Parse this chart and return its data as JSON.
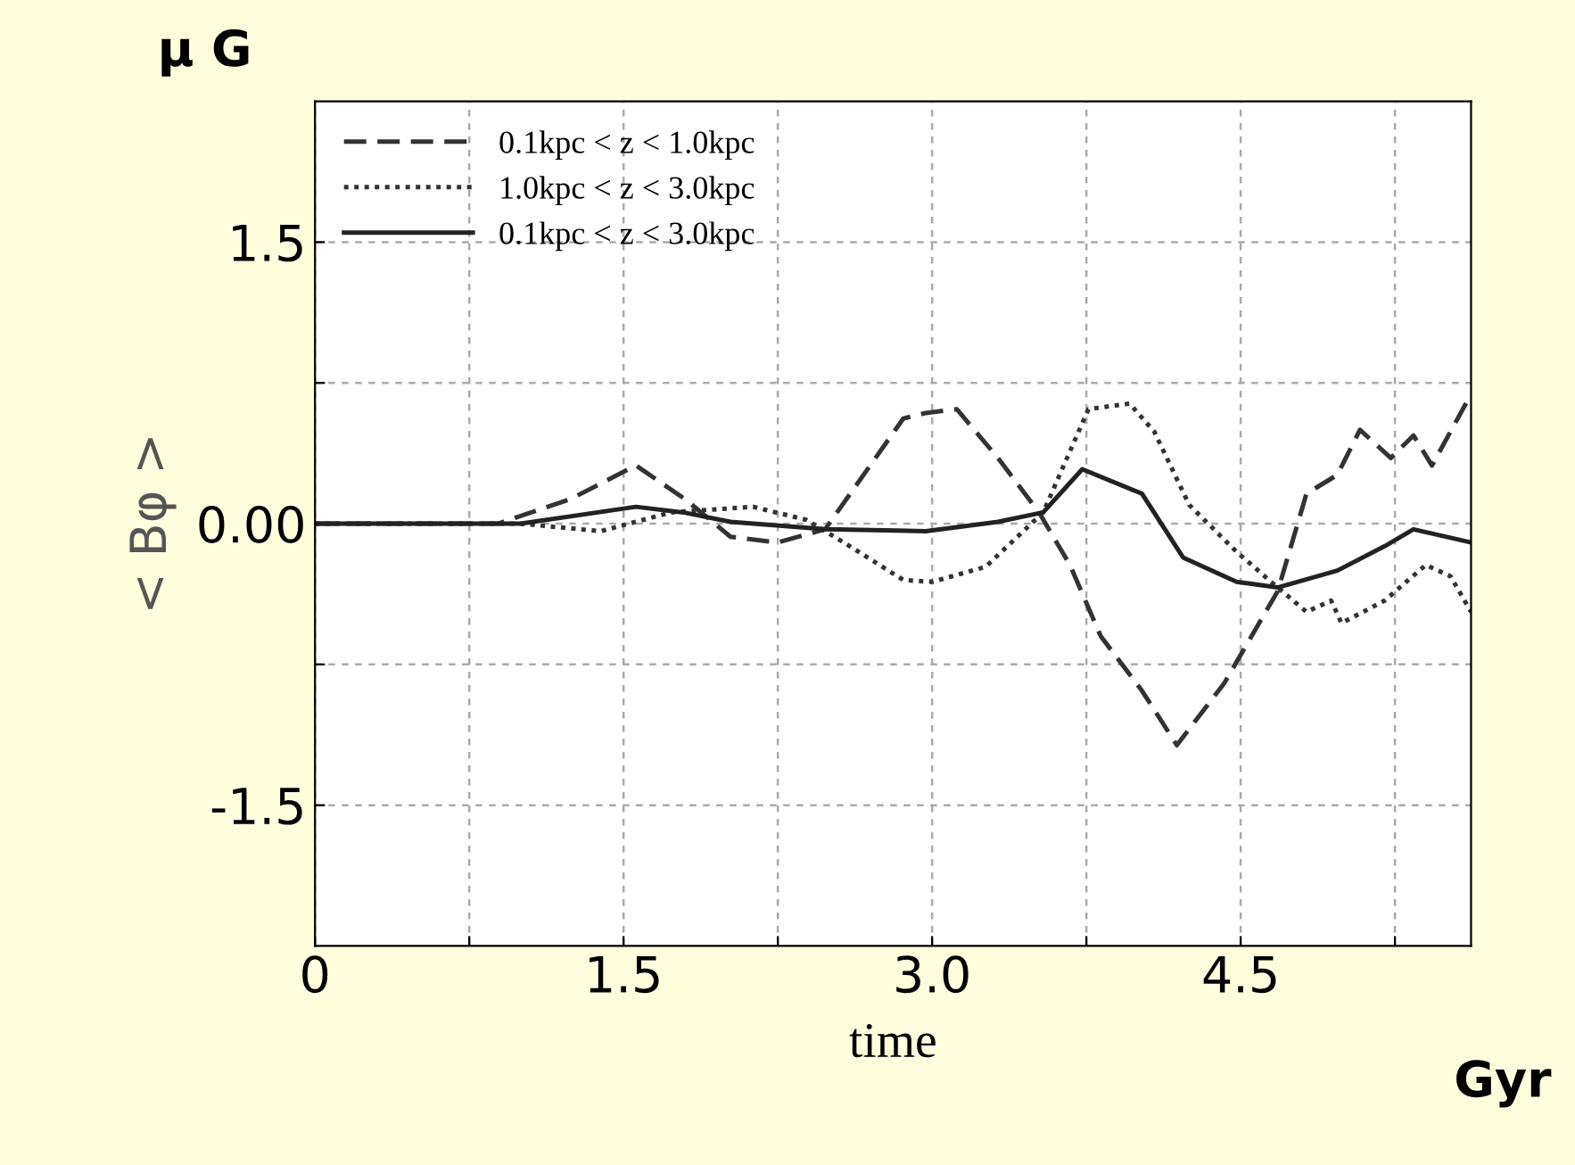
{
  "chart_data": {
    "type": "line",
    "xlabel": "time",
    "ylabel": "< Bφ >",
    "annotations": [
      "μ G",
      "Gyr"
    ],
    "xlim": [
      0,
      5.62
    ],
    "ylim": [
      -2.25,
      2.25
    ],
    "xticks": [
      0,
      {
        "value": 0.75,
        "label": null
      },
      1.5,
      {
        "value": 2.25,
        "label": null
      },
      {
        "value": 3.0,
        "label": "3.0"
      },
      {
        "value": 3.75,
        "label": null
      },
      4.5,
      {
        "value": 5.25,
        "label": null
      }
    ],
    "yticks": [
      {
        "value": -1.5,
        "label": "-1.5"
      },
      {
        "value": -0.75,
        "label": null
      },
      {
        "value": 0,
        "label": "0.00"
      },
      {
        "value": 0.75,
        "label": null
      },
      1.5
    ],
    "grid": true,
    "legend": "top left",
    "series": [
      {
        "name": "0.1kpc < z < 1.0kpc",
        "color": "#333333",
        "line_style": "dashed",
        "x": [
          0,
          0.89,
          1.24,
          1.56,
          1.8,
          2.02,
          2.25,
          2.48,
          2.86,
          2.97,
          3.12,
          3.32,
          3.52,
          3.67,
          3.82,
          4.02,
          4.19,
          4.42,
          4.68,
          4.82,
          4.97,
          5.08,
          5.23,
          5.34,
          5.43,
          5.62
        ],
        "values": [
          0,
          0,
          0.13,
          0.31,
          0.13,
          -0.07,
          -0.1,
          -0.03,
          0.56,
          0.59,
          0.61,
          0.35,
          0.06,
          -0.22,
          -0.6,
          -0.89,
          -1.18,
          -0.85,
          -0.36,
          0.16,
          0.26,
          0.5,
          0.35,
          0.47,
          0.31,
          0.69
        ]
      },
      {
        "name": "1.0kpc < z < 3.0kpc",
        "color": "#333333",
        "line_style": "dotted",
        "x": [
          0,
          1.0,
          1.39,
          1.73,
          2.13,
          2.39,
          2.6,
          2.86,
          3.0,
          3.26,
          3.54,
          3.76,
          3.96,
          4.08,
          4.25,
          4.48,
          4.68,
          4.82,
          4.94,
          4.99,
          5.2,
          5.4,
          5.52,
          5.62
        ],
        "values": [
          0,
          0,
          -0.04,
          0.06,
          0.09,
          0.02,
          -0.12,
          -0.3,
          -0.31,
          -0.23,
          0.06,
          0.61,
          0.64,
          0.49,
          0.1,
          -0.15,
          -0.34,
          -0.47,
          -0.41,
          -0.53,
          -0.41,
          -0.22,
          -0.28,
          -0.47
        ]
      },
      {
        "name": "0.1kpc < z < 3.0kpc",
        "color": "#222222",
        "line_style": "solid",
        "x": [
          0,
          1.0,
          1.56,
          1.79,
          2.02,
          2.48,
          2.97,
          3.32,
          3.54,
          3.73,
          4.02,
          4.22,
          4.48,
          4.68,
          4.97,
          5.2,
          5.34,
          5.62
        ],
        "values": [
          0,
          0,
          0.09,
          0.06,
          0.01,
          -0.03,
          -0.04,
          0.01,
          0.06,
          0.29,
          0.16,
          -0.18,
          -0.31,
          -0.34,
          -0.25,
          -0.12,
          -0.03,
          -0.1
        ]
      }
    ]
  }
}
